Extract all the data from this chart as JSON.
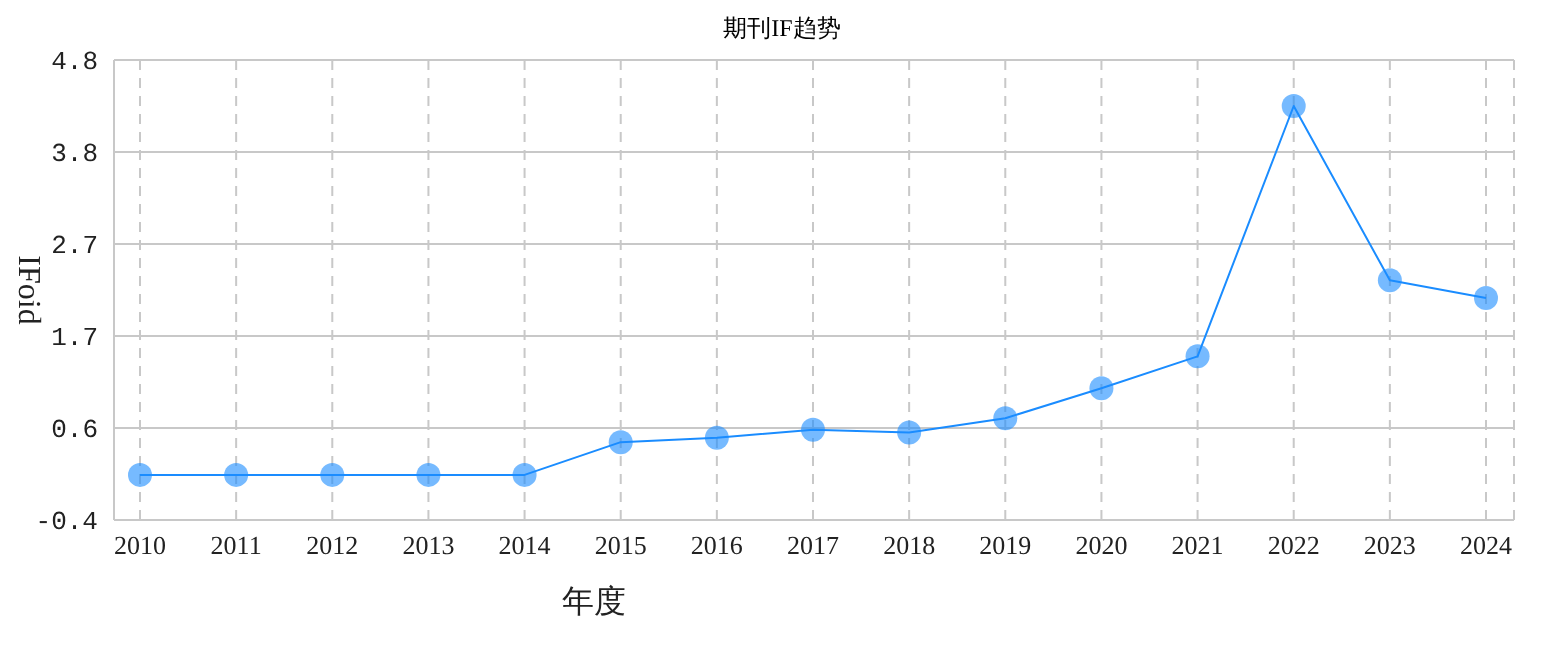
{
  "chart_data": {
    "type": "line",
    "title": "期刊IF趋势",
    "xlabel": "年度",
    "ylabel": "IFoid",
    "categories": [
      "2010",
      "2011",
      "2012",
      "2013",
      "2014",
      "2015",
      "2016",
      "2017",
      "2018",
      "2019",
      "2020",
      "2021",
      "2022",
      "2023",
      "2024"
    ],
    "series": [
      {
        "color": "#1a8cff",
        "values": [
          0.11,
          0.11,
          0.11,
          0.11,
          0.11,
          0.48,
          0.53,
          0.62,
          0.59,
          0.75,
          1.09,
          1.45,
          4.28,
          2.31,
          2.11
        ]
      }
    ],
    "ylim": [
      -0.4,
      4.8
    ],
    "yticks": [
      -0.4,
      {
        "value": 0.64,
        "label": "0.6"
      },
      {
        "value": 1.68,
        "label": "1.7"
      },
      {
        "value": 2.72,
        "label": "2.7"
      },
      {
        "value": 3.76,
        "label": "3.8"
      },
      4.8
    ],
    "grid": true,
    "marker": "circle",
    "line_style": "solid",
    "legend": false
  }
}
